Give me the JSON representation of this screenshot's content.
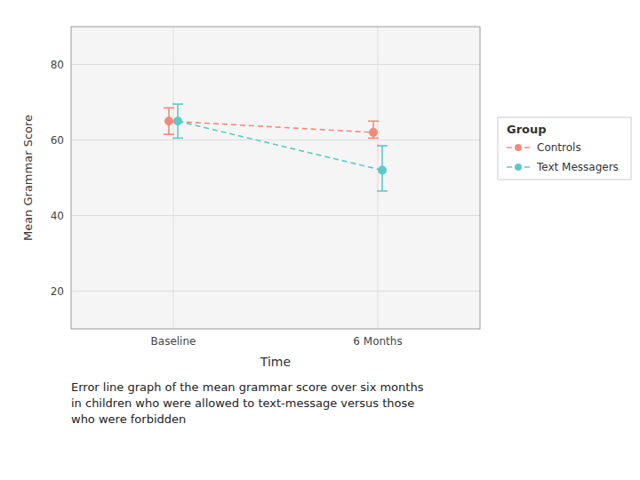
{
  "chart_data": {
    "type": "errorbar",
    "x_label": "Time",
    "y_label": "Mean Grammar Score",
    "categories": [
      "Baseline",
      "6 Months"
    ],
    "series": [
      {
        "name": "Controls",
        "color": "#F4897B",
        "marker": "circle",
        "line_style": "dashed",
        "values": [
          65.0,
          62.0
        ],
        "ci_low": [
          61.5,
          60.5
        ],
        "ci_high": [
          68.5,
          65.0
        ]
      },
      {
        "name": "Text Messagers",
        "color": "#5DC8C8",
        "marker": "circle",
        "line_style": "dashed",
        "values": [
          65.0,
          52.0
        ],
        "ci_low": [
          60.5,
          46.5
        ],
        "ci_high": [
          69.5,
          58.5
        ]
      }
    ],
    "legend_title": "Group",
    "legend": "right",
    "ylim": [
      10,
      90
    ],
    "yticks": [
      20,
      40,
      60,
      80
    ],
    "grid": true,
    "caption": "Error line graph of the mean grammar score over six months\nin children who were allowed to text-message versus those\nwho were forbidden"
  }
}
